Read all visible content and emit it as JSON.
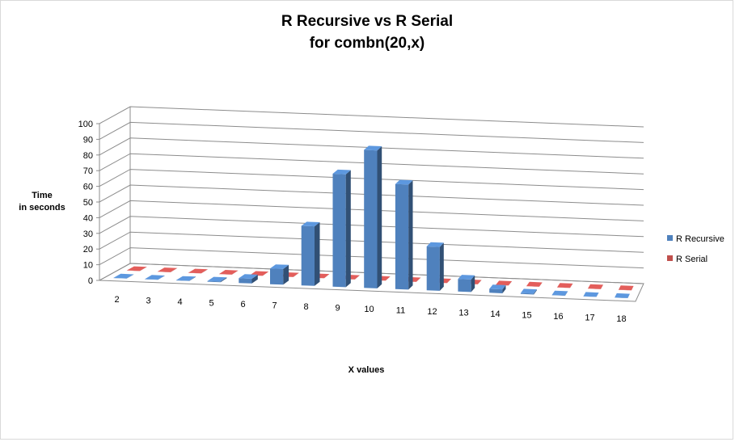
{
  "chart_data": {
    "type": "bar",
    "title": "R Recursive vs R Serial",
    "subtitle": "for combn(20,x)",
    "ylabel_line1": "Time",
    "ylabel_line2": "in seconds",
    "xlabel": "X values",
    "ylim": [
      0,
      100
    ],
    "y_ticks": [
      0,
      10,
      20,
      30,
      40,
      50,
      60,
      70,
      80,
      90,
      100
    ],
    "categories": [
      "2",
      "3",
      "4",
      "5",
      "6",
      "7",
      "8",
      "9",
      "10",
      "11",
      "12",
      "13",
      "14",
      "15",
      "16",
      "17",
      "18"
    ],
    "legend_position": "right",
    "series": [
      {
        "name": "R Recursive",
        "color": "#4f81bd",
        "values": [
          0.1,
          0.1,
          0.2,
          0.5,
          3,
          10,
          38,
          72,
          88,
          67,
          28,
          8,
          2.5,
          0.6,
          0.2,
          0.1,
          0.1
        ]
      },
      {
        "name": "R Serial",
        "color": "#c0504d",
        "values": [
          0.1,
          0.1,
          0.1,
          0.1,
          0.1,
          0.1,
          0.1,
          0.1,
          0.1,
          0.1,
          0.1,
          0.1,
          0.1,
          0.1,
          0.1,
          0.1,
          0.1
        ]
      }
    ]
  }
}
